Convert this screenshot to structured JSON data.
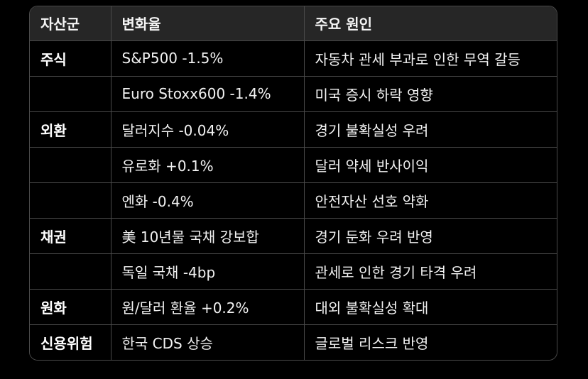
{
  "table": {
    "headers": [
      "자산군",
      "변화율",
      "주요 원인"
    ],
    "rows": [
      {
        "category": "주식",
        "change": "S&P500 -1.5%",
        "cause": "자동차 관세 부과로 인한 무역 갈등"
      },
      {
        "category": "",
        "change": "Euro Stoxx600 -1.4%",
        "cause": "미국 증시 하락 영향"
      },
      {
        "category": "외환",
        "change": "달러지수 -0.04%",
        "cause": "경기 불확실성 우려"
      },
      {
        "category": "",
        "change": "유로화 +0.1%",
        "cause": "달러 약세 반사이익"
      },
      {
        "category": "",
        "change": "엔화 -0.4%",
        "cause": "안전자산 선호 약화"
      },
      {
        "category": "채권",
        "change": "美 10년물 국채 강보합",
        "cause": "경기 둔화 우려 반영"
      },
      {
        "category": "",
        "change": "독일 국채 -4bp",
        "cause": "관세로 인한 경기 타격 우려"
      },
      {
        "category": "원화",
        "change": "원/달러 환율 +0.2%",
        "cause": "대외 불확실성 확대"
      },
      {
        "category": "신용위험",
        "change": "한국 CDS 상승",
        "cause": "글로벌 리스크 반영"
      }
    ]
  }
}
